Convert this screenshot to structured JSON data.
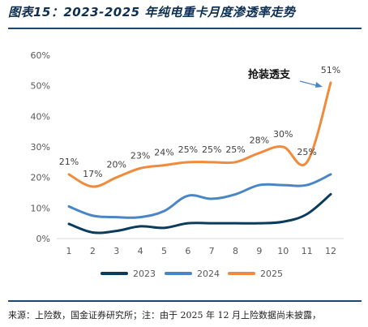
{
  "header": {
    "title": "图表15：2023-2025 年纯电重卡月度渗透率走势"
  },
  "footer": {
    "source": "来源：上险数，国金证券研究所；注：由于 2025 年 12 月上险数据尚未披露，"
  },
  "colors": {
    "s2023": "#0b3c5d",
    "s2024": "#4a86c5",
    "s2025": "#f08a3c",
    "axis": "#d9d9d9",
    "text": "#595959"
  },
  "chart_data": {
    "type": "line",
    "x": [
      "1",
      "2",
      "3",
      "4",
      "5",
      "6",
      "7",
      "8",
      "9",
      "10",
      "11",
      "12"
    ],
    "ylim": [
      0,
      60
    ],
    "yticks": [
      "0%",
      "10%",
      "20%",
      "30%",
      "40%",
      "50%",
      "60%"
    ],
    "grid": false,
    "legend": "bottom",
    "annotation": "抢装透支",
    "series": [
      {
        "name": "2023",
        "values": [
          4.8,
          2.0,
          2.5,
          4.0,
          3.5,
          5.0,
          5.0,
          5.0,
          5.0,
          5.5,
          8.0,
          14.5
        ]
      },
      {
        "name": "2024",
        "values": [
          10.5,
          7.5,
          7.0,
          7.0,
          9.0,
          14.0,
          13.0,
          14.5,
          17.5,
          17.5,
          17.5,
          21.0
        ]
      },
      {
        "name": "2025",
        "values": [
          21,
          17,
          20,
          23,
          24,
          25,
          25,
          25,
          28,
          30,
          25,
          51
        ],
        "labels": [
          "21%",
          "17%",
          "20%",
          "23%",
          "24%",
          "25%",
          "25%",
          "25%",
          "28%",
          "30%",
          "25%",
          "51%"
        ]
      }
    ]
  }
}
